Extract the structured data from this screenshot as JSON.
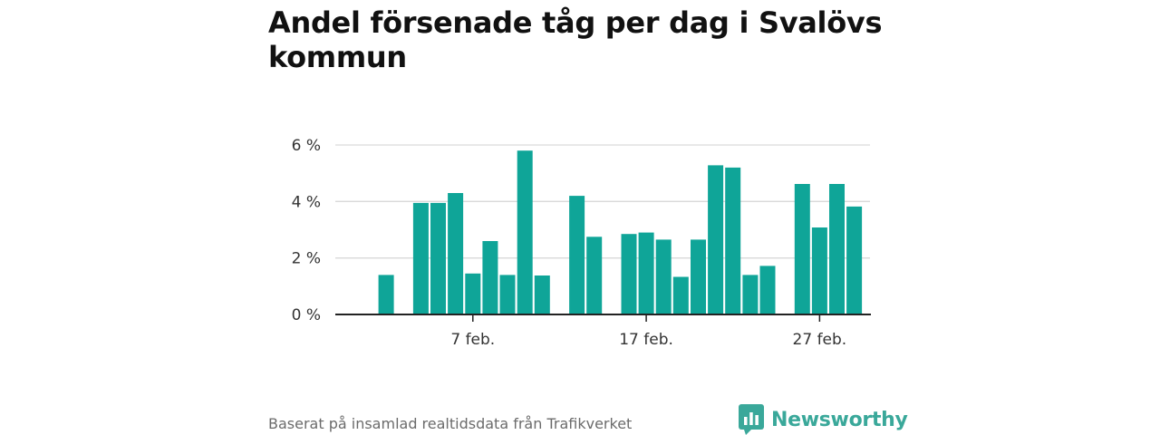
{
  "title": "Andel försenade tåg per dag i Svalövs kommun",
  "footer": {
    "source": "Baserat på insamlad realtidsdata från Trafikverket",
    "brand": "Newsworthy"
  },
  "colors": {
    "bar": "#0fa598",
    "grid": "#d9d9d9",
    "axis": "#222222",
    "brand": "#3aa89a"
  },
  "chart_data": {
    "type": "bar",
    "title": "Andel försenade tåg per dag i Svalövs kommun",
    "xlabel": "",
    "ylabel": "",
    "unit": "%",
    "ylim": [
      0,
      6
    ],
    "yticks": [
      0,
      2,
      4,
      6
    ],
    "ytick_labels": [
      "0 %",
      "2 %",
      "4 %",
      "6 %"
    ],
    "xtick_labels": [
      {
        "label": "7 feb.",
        "day": 7
      },
      {
        "label": "17 feb.",
        "day": 17
      },
      {
        "label": "27 feb.",
        "day": 27
      }
    ],
    "x": [
      1,
      2,
      3,
      4,
      5,
      6,
      7,
      8,
      9,
      10,
      11,
      12,
      13,
      14,
      15,
      16,
      17,
      18,
      19,
      20,
      21,
      22,
      23,
      24,
      25,
      26,
      27,
      28,
      29,
      30
    ],
    "values": [
      null,
      1.4,
      null,
      3.95,
      3.95,
      4.3,
      1.45,
      2.6,
      1.4,
      5.8,
      1.38,
      null,
      4.2,
      2.75,
      null,
      2.85,
      2.9,
      2.65,
      1.33,
      2.65,
      5.28,
      5.2,
      1.4,
      1.72,
      null,
      4.62,
      3.08,
      4.62,
      3.82,
      null
    ],
    "grid": true
  }
}
